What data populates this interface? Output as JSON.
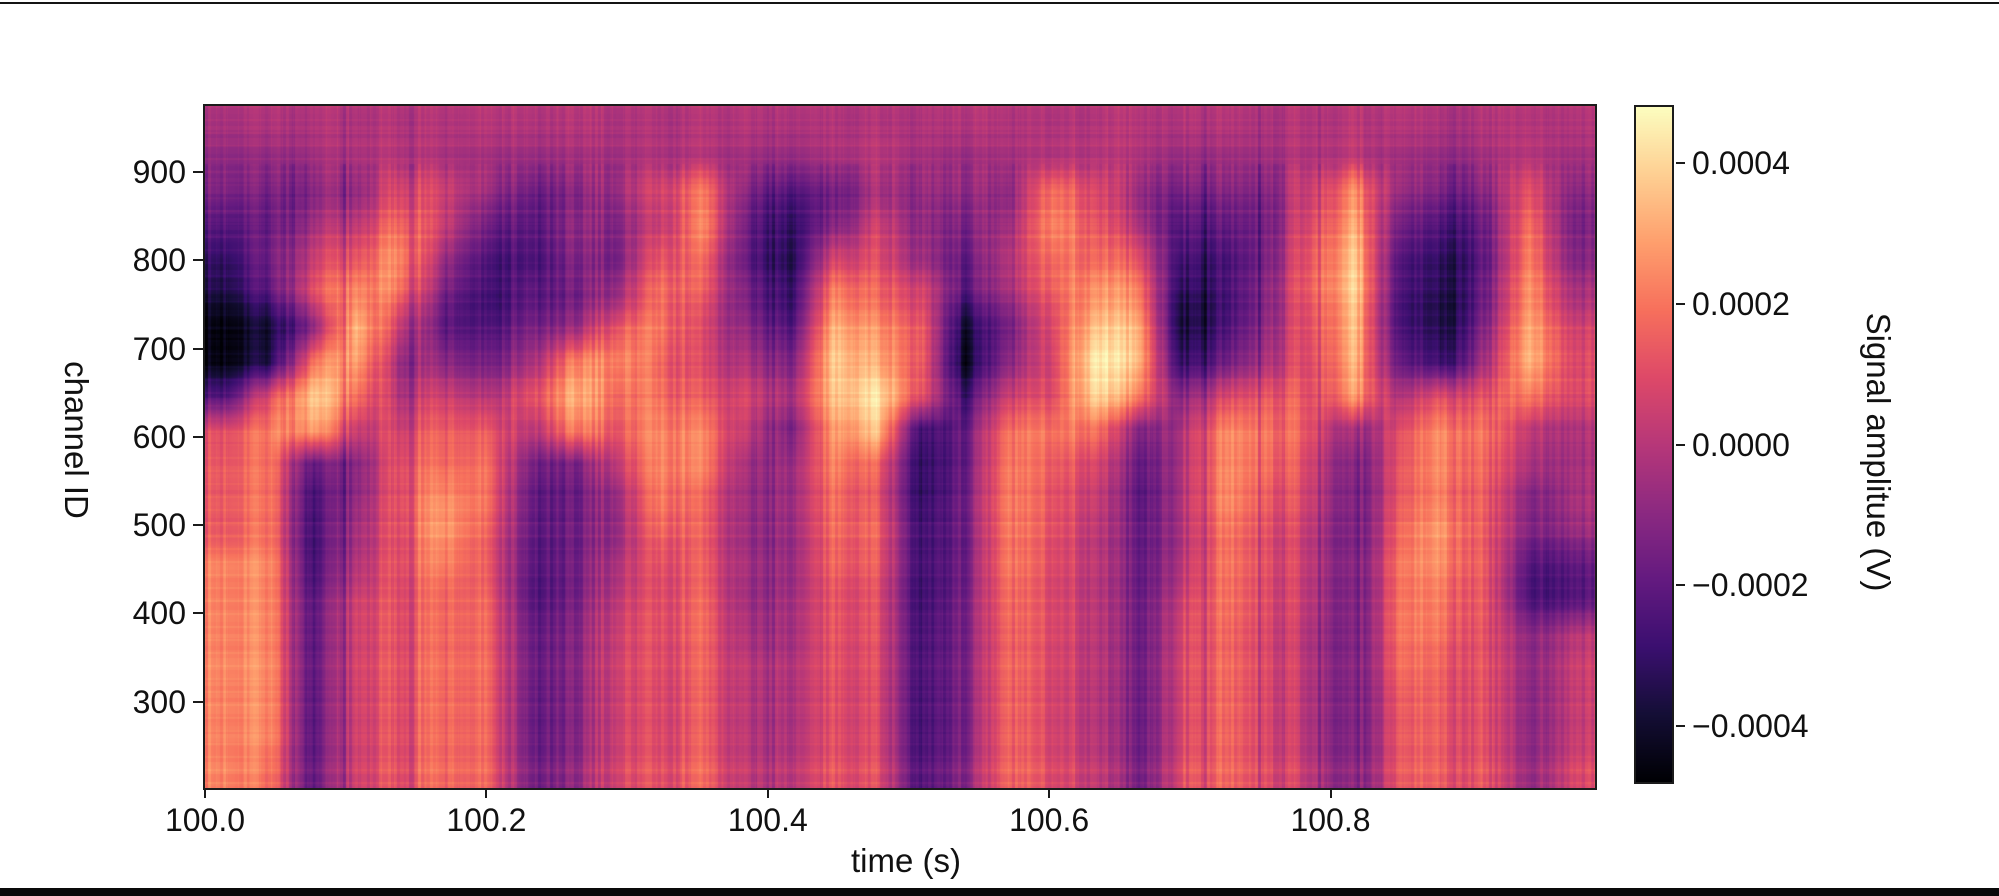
{
  "chart_data": {
    "type": "heatmap",
    "title": "",
    "xlabel": "time (s)",
    "ylabel": "channel ID",
    "colorbar_label": "Signal amplitue (V)",
    "colormap": "magma",
    "x_range": [
      100.0,
      100.988
    ],
    "y_range": [
      202,
      975
    ],
    "x_ticks": [
      100.0,
      100.2,
      100.4,
      100.6,
      100.8
    ],
    "x_tick_labels": [
      "100.0",
      "100.2",
      "100.4",
      "100.6",
      "100.8"
    ],
    "y_ticks": [
      900,
      800,
      700,
      600,
      500,
      400,
      300
    ],
    "y_tick_labels": [
      "900",
      "800",
      "700",
      "600",
      "500",
      "400",
      "300"
    ],
    "value_scale": 0.0001,
    "vmin": -4.8,
    "vmax": 4.8,
    "colorbar_ticks": [
      {
        "value": 4.0,
        "label": "0.0004"
      },
      {
        "value": 2.0,
        "label": "0.0002"
      },
      {
        "value": 0.0,
        "label": "0.0000"
      },
      {
        "value": -2.0,
        "label": "−0.0002"
      },
      {
        "value": -4.0,
        "label": "−0.0004"
      }
    ],
    "colormap_stops": [
      [
        0,
        0,
        4
      ],
      [
        20,
        14,
        54
      ],
      [
        59,
        15,
        112
      ],
      [
        100,
        26,
        128
      ],
      [
        140,
        41,
        129
      ],
      [
        183,
        55,
        121
      ],
      [
        222,
        73,
        104
      ],
      [
        247,
        112,
        92
      ],
      [
        254,
        159,
        109
      ],
      [
        254,
        207,
        146
      ],
      [
        252,
        253,
        191
      ]
    ],
    "n_time_bins": 32,
    "n_channel_bins": 20,
    "bin_channel_centers": [
      955,
      916,
      877,
      838,
      800,
      761,
      722,
      683,
      645,
      606,
      567,
      528,
      489,
      451,
      412,
      373,
      334,
      296,
      257,
      218
    ],
    "values": [
      [
        -0.3,
        -0.2,
        -0.2,
        -0.2,
        -0.1,
        -0.2,
        -0.2,
        -0.2,
        -0.2,
        -0.2,
        -0.2,
        -0.2,
        -0.2,
        -0.3,
        -0.1,
        -0.2,
        -0.2,
        -0.2,
        -0.2,
        -0.2,
        -0.1,
        -0.2,
        -0.3,
        -0.2,
        -0.2,
        -0.2,
        -0.1,
        -0.2,
        -0.3,
        -0.2,
        -0.2,
        -0.2
      ],
      [
        -0.8,
        -0.8,
        -0.5,
        -0.2,
        0.0,
        -0.3,
        -0.6,
        -0.7,
        -0.6,
        -0.4,
        -0.2,
        -0.2,
        -0.6,
        -0.8,
        -0.2,
        0.0,
        -0.4,
        -0.7,
        -0.4,
        -0.1,
        0.0,
        -0.3,
        -0.8,
        -0.7,
        -0.4,
        -0.2,
        0.0,
        -0.6,
        -0.8,
        -0.5,
        -0.1,
        -0.5
      ],
      [
        -1.2,
        -1.5,
        -1.2,
        -0.8,
        1.0,
        0.5,
        -1.0,
        -1.8,
        -1.5,
        -0.5,
        0.8,
        1.8,
        -1.5,
        -2.5,
        -1.5,
        -0.5,
        -0.8,
        -1.0,
        -1.0,
        2.0,
        1.0,
        -1.0,
        -1.8,
        -1.5,
        -1.0,
        0.5,
        2.2,
        -1.0,
        -1.5,
        -1.2,
        1.0,
        -1.2
      ],
      [
        -2.0,
        -1.8,
        -0.5,
        0.3,
        2.0,
        0.5,
        -2.0,
        -2.2,
        -1.2,
        -1.0,
        0.5,
        2.2,
        -2.0,
        -3.2,
        -1.0,
        0.5,
        -0.8,
        -1.5,
        -0.5,
        2.5,
        1.5,
        -0.5,
        -2.5,
        -2.2,
        -1.2,
        1.0,
        2.8,
        -1.8,
        -2.5,
        -1.8,
        1.8,
        -1.5
      ],
      [
        -2.8,
        -1.5,
        0.5,
        1.5,
        2.8,
        -0.5,
        -2.8,
        -2.5,
        -1.5,
        -1.2,
        1.5,
        1.5,
        -2.2,
        -3.5,
        1.0,
        1.0,
        -0.5,
        -2.0,
        0.0,
        2.0,
        2.0,
        1.0,
        -3.0,
        -2.8,
        -1.0,
        1.5,
        3.5,
        -2.5,
        -3.2,
        -2.0,
        2.2,
        -1.2
      ],
      [
        -3.5,
        -2.2,
        1.0,
        2.5,
        2.0,
        -1.5,
        -3.2,
        -2.2,
        -2.0,
        -0.5,
        2.0,
        1.0,
        -1.8,
        -3.2,
        2.5,
        1.5,
        0.8,
        -2.5,
        -0.5,
        1.5,
        2.8,
        2.0,
        -3.8,
        -3.0,
        -0.8,
        1.5,
        3.5,
        -2.8,
        -3.6,
        -1.8,
        2.5,
        -0.5
      ],
      [
        -4.4,
        -3.8,
        -1.0,
        3.5,
        0.5,
        -2.0,
        -2.8,
        -1.5,
        -1.0,
        1.5,
        2.2,
        0.5,
        -1.2,
        -2.5,
        3.5,
        2.5,
        1.5,
        -4.0,
        -1.5,
        1.0,
        3.8,
        3.0,
        -4.2,
        -2.8,
        -0.5,
        1.2,
        3.2,
        -2.8,
        -3.6,
        -1.2,
        3.0,
        0.5
      ],
      [
        -4.4,
        -3.5,
        2.0,
        3.0,
        -0.5,
        -1.0,
        -2.0,
        -0.5,
        2.0,
        2.5,
        1.8,
        0.5,
        -0.5,
        -1.5,
        4.0,
        3.0,
        1.5,
        -4.4,
        -1.0,
        0.8,
        4.7,
        3.2,
        -3.5,
        -2.0,
        0.0,
        1.0,
        3.0,
        -2.2,
        -3.0,
        -0.5,
        3.2,
        0.8
      ],
      [
        -2.2,
        1.0,
        3.8,
        2.0,
        0.0,
        0.5,
        -0.5,
        1.0,
        3.0,
        2.0,
        2.0,
        1.0,
        0.5,
        -0.5,
        3.8,
        4.2,
        1.2,
        -3.0,
        0.5,
        1.0,
        4.2,
        2.0,
        -1.5,
        0.5,
        1.5,
        1.0,
        2.5,
        -0.5,
        1.0,
        1.0,
        2.0,
        0.8
      ],
      [
        1.2,
        2.2,
        3.0,
        0.5,
        0.8,
        1.5,
        1.0,
        0.0,
        2.0,
        1.5,
        2.5,
        2.0,
        0.0,
        -1.5,
        3.0,
        3.5,
        -2.8,
        -2.0,
        2.0,
        2.0,
        2.2,
        -1.5,
        -0.5,
        2.2,
        2.2,
        1.0,
        -1.0,
        0.8,
        2.5,
        1.8,
        0.0,
        -0.3
      ],
      [
        1.5,
        2.0,
        -2.0,
        -1.0,
        1.3,
        1.8,
        1.5,
        -1.5,
        -1.8,
        0.5,
        2.5,
        2.0,
        -0.8,
        -0.8,
        2.5,
        1.5,
        -3.2,
        -2.0,
        2.2,
        1.5,
        1.0,
        -2.2,
        -0.5,
        2.2,
        2.0,
        0.5,
        -1.8,
        1.0,
        2.5,
        1.5,
        -0.5,
        -0.5
      ],
      [
        1.5,
        2.0,
        -2.8,
        -0.8,
        1.3,
        2.5,
        1.5,
        -2.0,
        -2.2,
        -0.5,
        2.2,
        1.2,
        -1.0,
        -0.8,
        2.0,
        1.0,
        -3.2,
        -1.8,
        2.2,
        1.2,
        0.5,
        -2.5,
        -0.5,
        2.2,
        1.5,
        0.3,
        -2.0,
        1.0,
        2.2,
        1.2,
        -1.5,
        -0.5
      ],
      [
        1.5,
        2.0,
        -2.8,
        -0.3,
        1.3,
        2.8,
        1.2,
        -2.0,
        -2.0,
        -0.5,
        1.8,
        1.2,
        -1.0,
        -0.8,
        2.0,
        1.5,
        -2.8,
        -1.8,
        2.2,
        1.2,
        0.3,
        -2.2,
        -0.5,
        1.8,
        1.2,
        0.0,
        -2.0,
        1.5,
        2.8,
        1.2,
        -1.5,
        -0.8
      ],
      [
        2.5,
        2.5,
        -2.8,
        0.0,
        1.3,
        2.2,
        1.0,
        -2.2,
        -2.0,
        0.0,
        1.2,
        1.2,
        -0.8,
        -0.8,
        1.8,
        1.2,
        -2.8,
        -1.8,
        2.2,
        1.0,
        0.3,
        -2.2,
        -0.3,
        1.8,
        1.2,
        0.0,
        -1.8,
        1.8,
        2.5,
        1.2,
        -2.6,
        -2.2
      ],
      [
        2.5,
        2.5,
        -2.2,
        0.8,
        1.3,
        1.8,
        1.4,
        -2.2,
        -1.8,
        0.5,
        1.2,
        1.5,
        -0.8,
        -0.5,
        1.5,
        1.0,
        -2.8,
        -1.5,
        2.0,
        1.0,
        0.3,
        -2.0,
        0.3,
        1.8,
        1.2,
        0.0,
        -1.8,
        1.8,
        2.2,
        1.2,
        -2.6,
        -2.2
      ],
      [
        2.5,
        2.5,
        -2.2,
        0.8,
        1.3,
        1.8,
        1.4,
        -1.8,
        -1.5,
        0.8,
        1.2,
        1.5,
        -0.5,
        -0.5,
        1.5,
        1.0,
        -2.6,
        -1.5,
        1.8,
        1.0,
        0.3,
        -2.0,
        0.5,
        1.5,
        1.0,
        -0.3,
        -1.8,
        1.8,
        2.0,
        1.0,
        -1.2,
        0.0
      ],
      [
        2.5,
        2.5,
        -2.2,
        0.8,
        1.3,
        1.8,
        1.4,
        -1.8,
        -1.5,
        0.8,
        1.0,
        1.3,
        -0.2,
        -0.3,
        1.3,
        0.8,
        -2.6,
        -1.5,
        1.8,
        0.8,
        0.2,
        -2.0,
        0.5,
        1.5,
        1.0,
        -0.3,
        -1.8,
        1.5,
        1.5,
        1.0,
        -1.2,
        0.3
      ],
      [
        2.5,
        2.5,
        -2.2,
        0.8,
        1.3,
        1.8,
        1.4,
        -1.8,
        -1.5,
        0.8,
        1.0,
        1.3,
        -0.2,
        -0.3,
        1.3,
        0.8,
        -2.6,
        -1.5,
        1.8,
        0.8,
        0.2,
        -2.0,
        0.5,
        1.5,
        1.0,
        -0.3,
        -1.8,
        1.2,
        1.5,
        1.0,
        -1.2,
        0.3
      ],
      [
        2.5,
        2.5,
        -2.2,
        0.8,
        1.3,
        1.8,
        1.4,
        -1.8,
        -1.5,
        0.8,
        1.0,
        1.3,
        -0.2,
        -0.3,
        1.3,
        0.8,
        -2.6,
        -1.5,
        1.8,
        0.8,
        0.2,
        -2.0,
        0.5,
        1.5,
        1.0,
        -0.3,
        -1.8,
        1.2,
        1.5,
        1.0,
        -1.2,
        0.3
      ],
      [
        2.5,
        2.0,
        -2.0,
        0.8,
        1.3,
        1.8,
        1.4,
        -1.5,
        -1.2,
        1.0,
        1.2,
        1.5,
        0.0,
        0.0,
        1.5,
        1.0,
        -2.3,
        -1.2,
        1.8,
        1.0,
        0.5,
        -1.8,
        0.8,
        1.5,
        1.2,
        0.0,
        -1.5,
        1.2,
        1.5,
        1.2,
        -1.0,
        0.8
      ]
    ],
    "render_hints": {
      "seed": 7,
      "stripe_fine": 0.9,
      "stripe_band": 0.6,
      "row_noise": 0.35,
      "mesh_light": 0.22,
      "top_band_stripe_factor": 0.5
    },
    "grid": "off",
    "legend": "none"
  }
}
